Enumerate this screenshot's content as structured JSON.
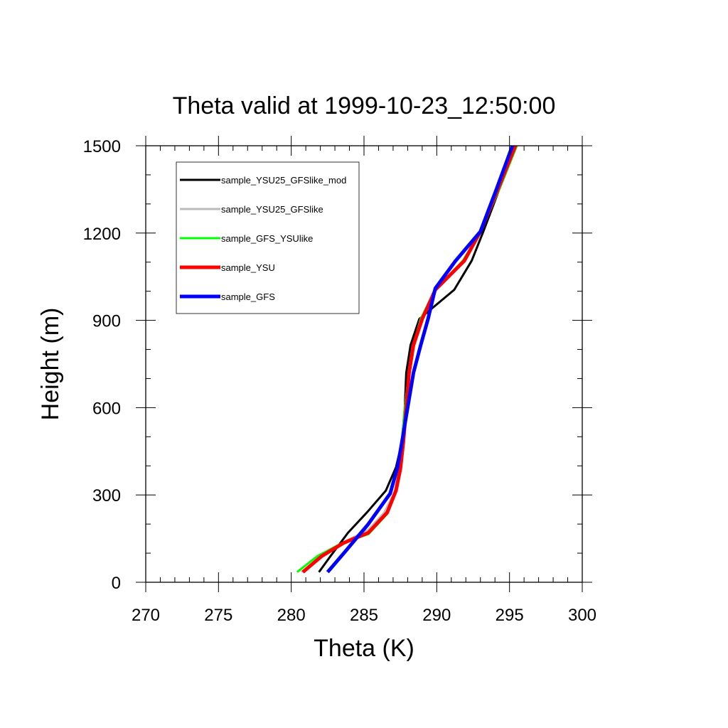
{
  "chart_data": {
    "type": "line",
    "title": "Theta valid at 1999-10-23_12:50:00",
    "xlabel": "Theta (K)",
    "ylabel": "Height (m)",
    "xlim": [
      270,
      300
    ],
    "ylim": [
      0,
      1500
    ],
    "xticks": [
      270,
      275,
      280,
      285,
      290,
      295,
      300
    ],
    "yticks": [
      0,
      300,
      600,
      900,
      1200,
      1500
    ],
    "grid": false,
    "legend_position": "top-left",
    "series": [
      {
        "name": "sample_YSU25_GFSlike_mod",
        "color": "#000000",
        "width": 3,
        "points": [
          [
            281.9,
            35
          ],
          [
            282.7,
            90
          ],
          [
            283.9,
            170
          ],
          [
            285.2,
            240
          ],
          [
            286.5,
            315
          ],
          [
            287.2,
            395
          ],
          [
            287.6,
            480
          ],
          [
            287.8,
            600
          ],
          [
            287.9,
            720
          ],
          [
            288.2,
            815
          ],
          [
            288.8,
            905
          ],
          [
            291.2,
            1005
          ],
          [
            292.4,
            1105
          ],
          [
            293.2,
            1205
          ],
          [
            294.3,
            1350
          ],
          [
            295.5,
            1500
          ]
        ]
      },
      {
        "name": "sample_YSU25_GFSlike",
        "color": "#bbbbbb",
        "width": 3,
        "points": [
          [
            280.7,
            35
          ],
          [
            282.2,
            90
          ],
          [
            283.7,
            140
          ],
          [
            285.3,
            180
          ],
          [
            286.4,
            240
          ],
          [
            287.1,
            310
          ],
          [
            287.4,
            390
          ],
          [
            287.6,
            480
          ],
          [
            287.8,
            600
          ],
          [
            288.1,
            720
          ],
          [
            288.4,
            815
          ],
          [
            288.9,
            905
          ],
          [
            289.9,
            1005
          ],
          [
            291.8,
            1105
          ],
          [
            293.0,
            1205
          ],
          [
            294.3,
            1350
          ],
          [
            295.5,
            1500
          ]
        ]
      },
      {
        "name": "sample_GFS_YSUlike",
        "color": "#00ff00",
        "width": 3,
        "points": [
          [
            280.4,
            35
          ],
          [
            281.8,
            90
          ],
          [
            283.5,
            135
          ],
          [
            285.3,
            165
          ],
          [
            286.6,
            235
          ],
          [
            287.2,
            310
          ],
          [
            287.4,
            390
          ],
          [
            287.6,
            480
          ],
          [
            287.8,
            600
          ],
          [
            288.1,
            720
          ],
          [
            288.4,
            815
          ],
          [
            288.9,
            905
          ],
          [
            289.9,
            1005
          ],
          [
            291.8,
            1105
          ],
          [
            293.0,
            1205
          ],
          [
            294.3,
            1350
          ],
          [
            295.5,
            1500
          ]
        ]
      },
      {
        "name": "sample_YSU",
        "color": "#ff0000",
        "width": 5,
        "points": [
          [
            280.8,
            35
          ],
          [
            282.1,
            90
          ],
          [
            283.6,
            135
          ],
          [
            285.3,
            170
          ],
          [
            286.6,
            240
          ],
          [
            287.2,
            315
          ],
          [
            287.5,
            390
          ],
          [
            287.7,
            480
          ],
          [
            287.9,
            600
          ],
          [
            288.1,
            720
          ],
          [
            288.4,
            815
          ],
          [
            289.0,
            905
          ],
          [
            289.9,
            1005
          ],
          [
            291.9,
            1105
          ],
          [
            293.0,
            1205
          ],
          [
            294.2,
            1350
          ],
          [
            295.4,
            1500
          ]
        ]
      },
      {
        "name": "sample_GFS",
        "color": "#0000ff",
        "width": 5,
        "points": [
          [
            282.5,
            35
          ],
          [
            283.7,
            105
          ],
          [
            285.3,
            200
          ],
          [
            286.8,
            305
          ],
          [
            287.3,
            395
          ],
          [
            287.6,
            480
          ],
          [
            288.0,
            600
          ],
          [
            288.4,
            720
          ],
          [
            288.9,
            815
          ],
          [
            289.4,
            905
          ],
          [
            289.9,
            1010
          ],
          [
            291.3,
            1105
          ],
          [
            293.0,
            1205
          ],
          [
            294.1,
            1350
          ],
          [
            295.2,
            1500
          ]
        ]
      }
    ]
  }
}
